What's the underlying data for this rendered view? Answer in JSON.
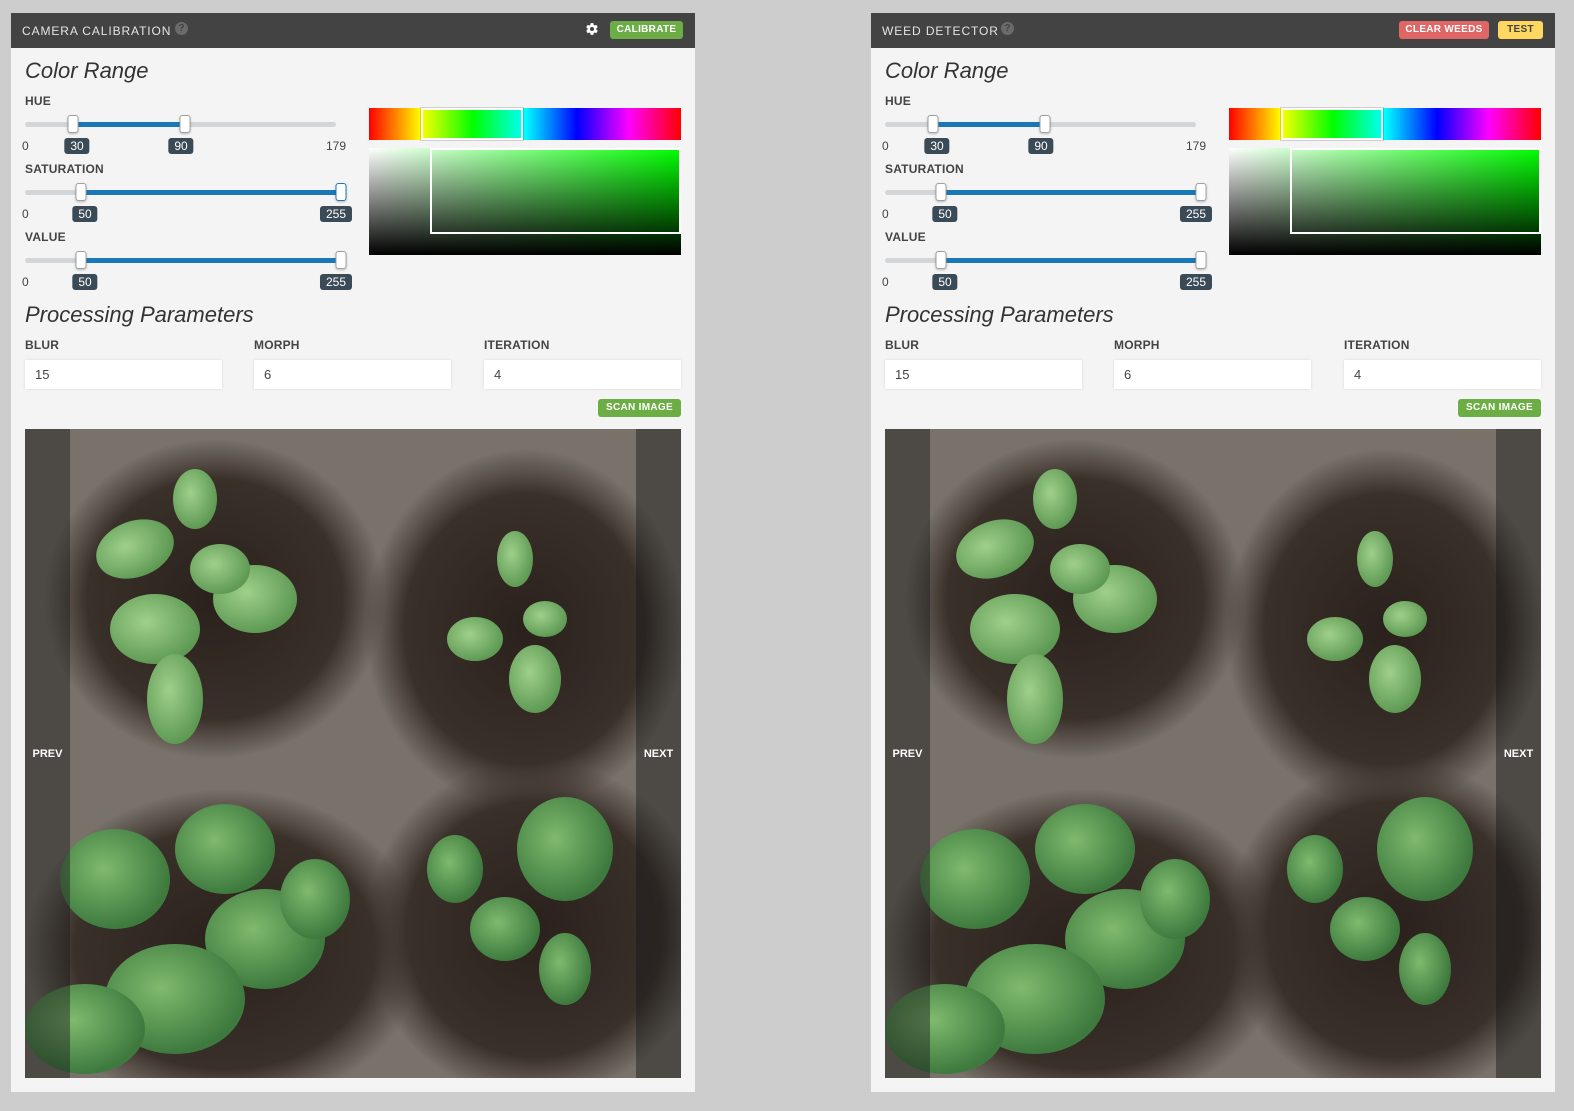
{
  "widgets": [
    {
      "title": "CAMERA CALIBRATION",
      "help": "?",
      "header_buttons": [
        {
          "label": "CALIBRATE",
          "variant": "green"
        }
      ],
      "show_settings": true,
      "color_range_title": "Color Range",
      "hue": {
        "label": "HUE",
        "min": 0,
        "max": 179,
        "low": 30,
        "high": 90
      },
      "saturation": {
        "label": "SATURATION",
        "min": 0,
        "max": 255,
        "low": 50,
        "high": 255
      },
      "value": {
        "label": "VALUE",
        "min": 0,
        "max": 255,
        "low": 50,
        "high": 255
      },
      "processing_title": "Processing Parameters",
      "params": [
        {
          "label": "BLUR",
          "value": "15"
        },
        {
          "label": "MORPH",
          "value": "6"
        },
        {
          "label": "ITERATION",
          "value": "4"
        }
      ],
      "scan_label": "SCAN IMAGE",
      "prev_label": "PREV",
      "next_label": "NEXT"
    },
    {
      "title": "WEED DETECTOR",
      "help": "?",
      "header_buttons": [
        {
          "label": "CLEAR WEEDS",
          "variant": "red"
        },
        {
          "label": "TEST",
          "variant": "yellow"
        }
      ],
      "show_settings": false,
      "color_range_title": "Color Range",
      "hue": {
        "label": "HUE",
        "min": 0,
        "max": 179,
        "low": 30,
        "high": 90
      },
      "saturation": {
        "label": "SATURATION",
        "min": 0,
        "max": 255,
        "low": 50,
        "high": 255
      },
      "value": {
        "label": "VALUE",
        "min": 0,
        "max": 255,
        "low": 50,
        "high": 255
      },
      "processing_title": "Processing Parameters",
      "params": [
        {
          "label": "BLUR",
          "value": "15"
        },
        {
          "label": "MORPH",
          "value": "6"
        },
        {
          "label": "ITERATION",
          "value": "4"
        }
      ],
      "scan_label": "SCAN IMAGE",
      "prev_label": "PREV",
      "next_label": "NEXT"
    }
  ],
  "colors": {
    "header": "#434343",
    "green": "#6cae45",
    "red": "#e06565",
    "yellow": "#fed760",
    "slider_fill": "#1a78b7",
    "tag": "#3a4a56"
  }
}
